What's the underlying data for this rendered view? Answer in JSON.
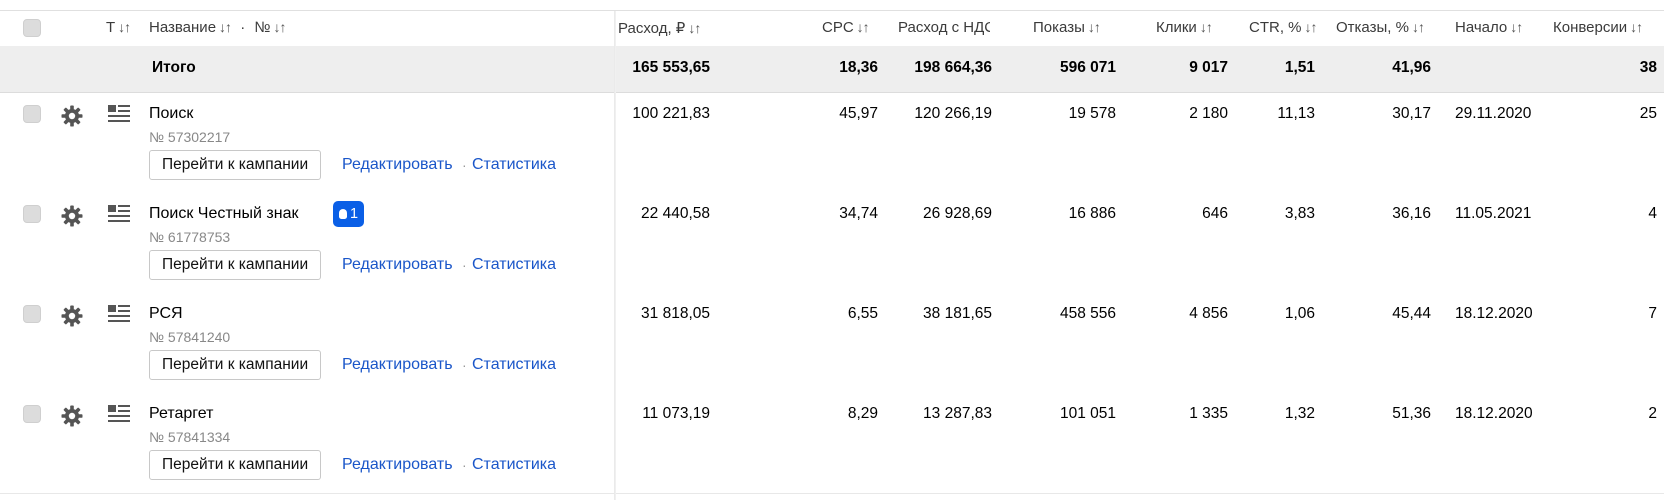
{
  "header": {
    "col_type_label": "Т",
    "col_name_label": "Название",
    "col_name_sep": "·",
    "col_number_label": "№",
    "sort_glyph": "↓↑",
    "columns": [
      "Расход, ₽",
      "CPC",
      "Расход с НДС",
      "Показы",
      "Клики",
      "CTR, %",
      "Отказы, %",
      "Начало",
      "Конверсии"
    ]
  },
  "totals": {
    "label": "Итого",
    "values": [
      "165 553,65",
      "18,36",
      "198 664,36",
      "596 071",
      "9 017",
      "1,51",
      "41,96",
      "",
      "38"
    ]
  },
  "campaigns": [
    {
      "name": "Поиск",
      "number": "№ 57302217",
      "badge": "",
      "values": [
        "100 221,83",
        "45,97",
        "120 266,19",
        "19 578",
        "2 180",
        "11,13",
        "30,17",
        "29.11.2020",
        "25"
      ]
    },
    {
      "name": "Поиск Честный знак",
      "number": "№ 61778753",
      "badge": "1",
      "values": [
        "22 440,58",
        "34,74",
        "26 928,69",
        "16 886",
        "646",
        "3,83",
        "36,16",
        "11.05.2021",
        "4"
      ]
    },
    {
      "name": "РСЯ",
      "number": "№ 57841240",
      "badge": "",
      "values": [
        "31 818,05",
        "6,55",
        "38 181,65",
        "458 556",
        "4 856",
        "1,06",
        "45,44",
        "18.12.2020",
        "7"
      ]
    },
    {
      "name": "Ретаргет",
      "number": "№ 57841334",
      "badge": "",
      "values": [
        "11 073,19",
        "8,29",
        "13 287,83",
        "101 051",
        "1 335",
        "1,32",
        "51,36",
        "18.12.2020",
        "2"
      ]
    }
  ],
  "actions": {
    "goto_label": "Перейти к кампании",
    "edit_label": "Редактировать",
    "link_sep": "·",
    "stats_label": "Статистика"
  },
  "icons": {
    "gear": "gear-icon",
    "list": "list-view-icon",
    "bulb": "lightbulb-icon",
    "checkbox": "checkbox"
  },
  "colors": {
    "link": "#1a56c9",
    "badge_bg": "#0a5fe6",
    "total_row_bg": "#eeeeee"
  }
}
